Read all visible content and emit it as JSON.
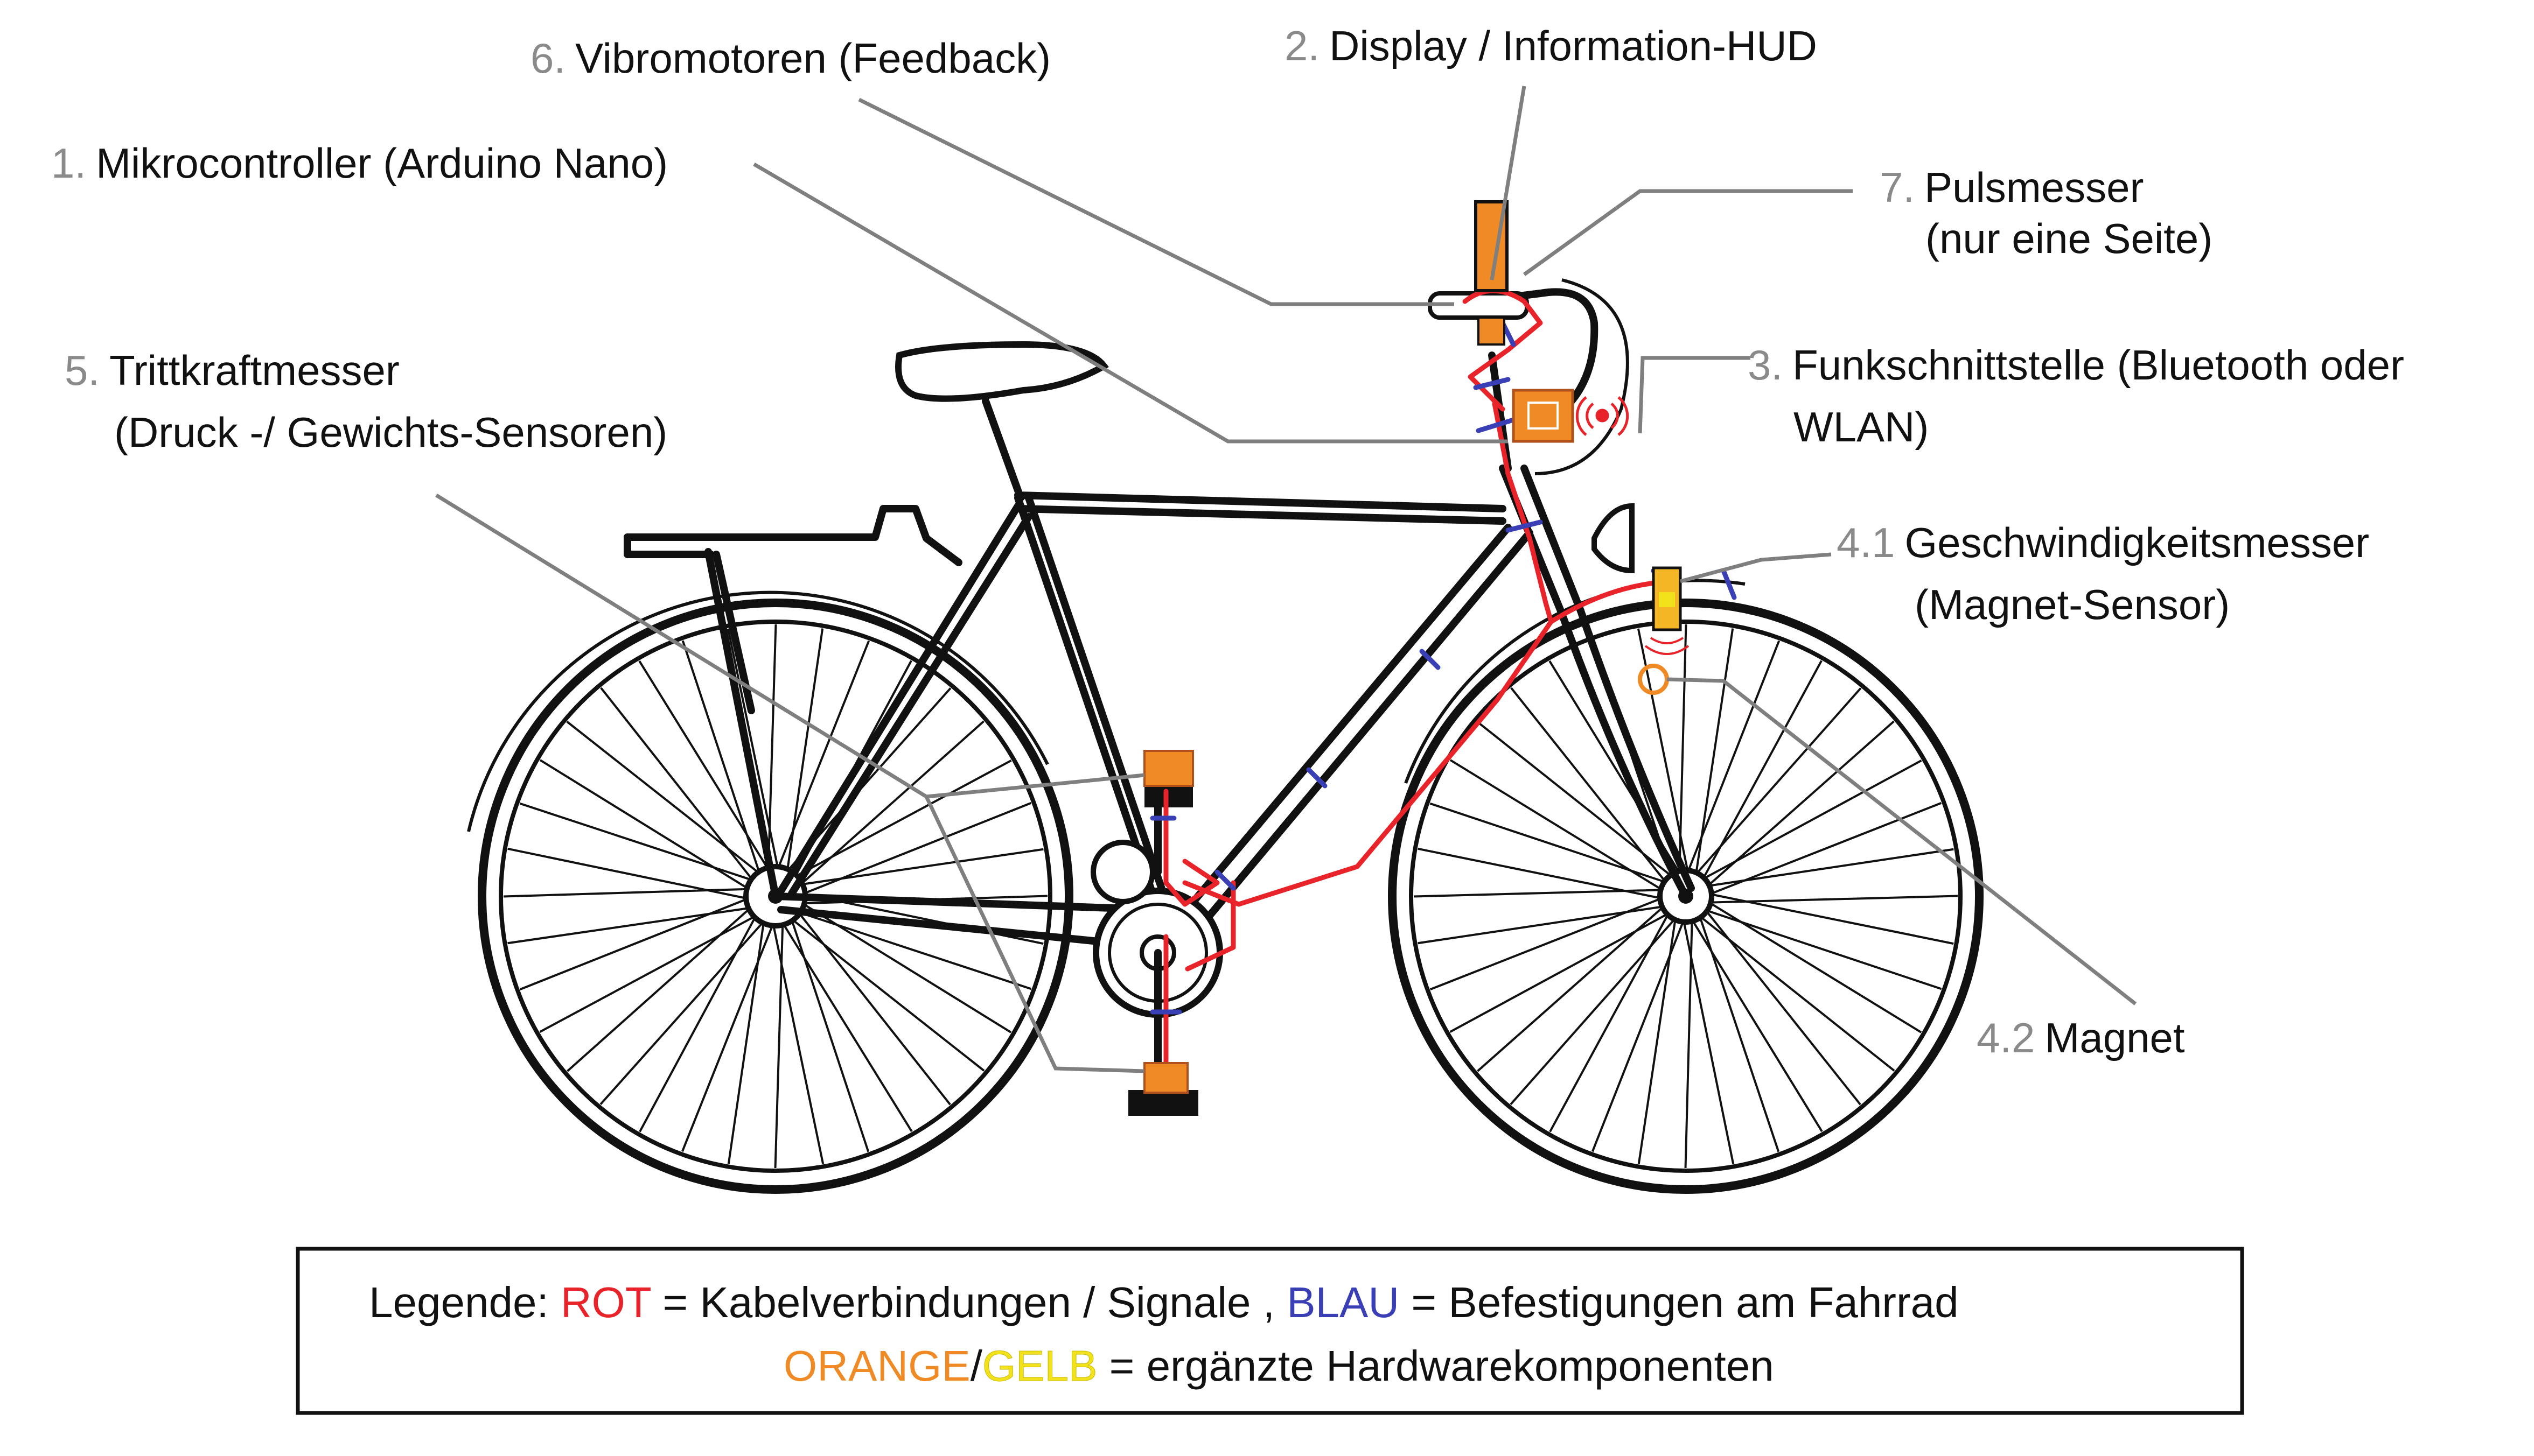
{
  "labels": [
    {
      "id": "mikrocontroller",
      "num": "1.",
      "text": "Mikrocontroller (Arduino Nano)"
    },
    {
      "id": "display",
      "num": "2.",
      "text": "Display / Information-HUD"
    },
    {
      "id": "funk",
      "num": "3.",
      "text": "Funkschnittstelle (Bluetooth oder",
      "text2": "WLAN)"
    },
    {
      "id": "speed",
      "num": "4.1",
      "text": "Geschwindigkeitsmesser",
      "text2": "(Magnet-Sensor)"
    },
    {
      "id": "magnet",
      "num": "4.2",
      "text": "Magnet"
    },
    {
      "id": "tritt",
      "num": "5.",
      "text": "Trittkraftmesser",
      "text2": "(Druck -/ Gewichts-Sensoren)"
    },
    {
      "id": "vibro",
      "num": "6.",
      "text": "Vibromotoren (Feedback)"
    },
    {
      "id": "puls",
      "num": "7.",
      "text": "Pulsmesser",
      "text2": "(nur eine Seite)"
    }
  ],
  "legend": {
    "prefix": "Legende: ",
    "rot": "ROT",
    "rot_desc": " = Kabelverbindungen / Signale  , ",
    "blau": "BLAU",
    "blau_desc": " = Befestigungen am Fahrrad",
    "orange": "ORANGE",
    "slash": "/",
    "gelb": "GELB",
    "orange_desc": " = ergänzte Hardwarekomponenten"
  },
  "colors": {
    "rot": "#e8242a",
    "blau": "#3a3fb5",
    "orange": "#f08a24",
    "gelb": "#f2e21c",
    "number_gray": "#8a8a8a",
    "leader_gray": "#7f7f7f"
  }
}
